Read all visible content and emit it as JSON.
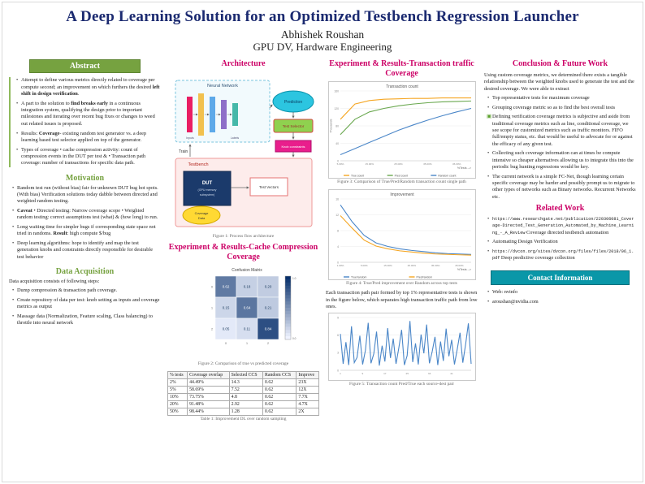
{
  "header": {
    "title": "A Deep Learning Solution for an Optimized Testbench Regression Launcher",
    "author": "Abhishek Roushan",
    "affiliation": "GPU DV, Hardware Engineering"
  },
  "abstract": {
    "header": "Abstract",
    "bullets": [
      {
        "pre": "Attempt to define various metrics directly related to coverage per compute second; an improvement on which furthers the desired ",
        "bold": "left shift in design verification",
        "post": "."
      },
      {
        "pre": "A part to the solution to ",
        "bold": "find breaks early",
        "post": " in a continuous integration system, qualifying the design prior to important milestones and iterating over recent bug fixes or changes to weed out related issues is proposed."
      },
      {
        "pre": "Results: ",
        "bold": "Coverage",
        "post": "- existing random test generator vs. a deep learning based test selector applied on top of the generator."
      },
      {
        "pre": "Types of coverage • cache compression activity: count of compression events in the DUT per test & • Transaction path coverage: number of transactions for specific data path.",
        "bold": "",
        "post": ""
      }
    ]
  },
  "motivation": {
    "header": "Motivation",
    "bullets": [
      {
        "pre": "Random test run (without bias) fair for unknown DUT bug hot spots. (With bias) Verification solutions today dabble between directed and weighted random testing.",
        "bold": "",
        "post": ""
      },
      {
        "pre": "",
        "bold": "Caveat",
        "post": " • Directed testing: Narrow coverage scope • Weighted random testing: correct assumptions test (what) & (how long) to run."
      },
      {
        "pre": "Long waiting time for simpler bugs if corresponding state space not tried in randoms. ",
        "bold": "Result",
        "post": ": high compute $/bug"
      },
      {
        "pre": "Deep learning algorithms: hope to identify and map the test generation knobs and constraints directly responsible for desirable test behavior",
        "bold": "",
        "post": ""
      }
    ]
  },
  "data_acquisition": {
    "header": "Data Acquisition",
    "intro": "Data acquisition consists of following steps:",
    "bullets": [
      "Dump compression & transaction path coverage.",
      "Create repository of data per test: knob setting as inputs and coverage metrics as output",
      "Massage data (Normalization, Feature scaling, Class balancing) to throttle into neural network"
    ]
  },
  "architecture": {
    "header": "Architecture",
    "figure_caption": "Figure 1: Process flow architecture",
    "labels": {
      "neural_network": "Neural Network",
      "inputs": "Inputs",
      "labels": "Labels",
      "prediction": "Prediction",
      "test_selector": "Test Selector",
      "knob_constraints": "Knob constraints",
      "train": "Train",
      "testbench": "Testbench",
      "dut": "DUT",
      "dut_sub1": "(GPU memory",
      "dut_sub2": "subsystem)",
      "test_vectors": "Test Vectors",
      "coverage_1": "Coverage",
      "coverage_2": "Data"
    }
  },
  "cache_results": {
    "header": "Experiment & Results-Cache Compression Coverage",
    "figure_caption": "Figure 2: Comparison of true vs predicted coverage",
    "table_caption": "Table 1: Improvement DL over random sampling",
    "table": {
      "headers": [
        "% tests",
        "Coverage overlap",
        "Selected CCS",
        "Random CCS",
        "Improve"
      ],
      "rows": [
        [
          "2%",
          "44.49%",
          "14.3",
          "0.62",
          "23X"
        ],
        [
          "5%",
          "58.69%",
          "7.52",
          "0.62",
          "12X"
        ],
        [
          "10%",
          "73.75%",
          "4.8",
          "0.62",
          "7.7X"
        ],
        [
          "20%",
          "91.48%",
          "2.92",
          "0.62",
          "4.7X"
        ],
        [
          "50%",
          "98.44%",
          "1.28",
          "0.62",
          "2X"
        ]
      ]
    }
  },
  "transaction_results": {
    "header": "Experiment & Results-Transaction traffic Coverage",
    "fig3_caption": "Figure 3: Comparison of True/Pred/Random transaction count single path",
    "fig4_caption": "Figure 4: True/Pred improvement over Random across top tests",
    "paragraph": "Each transaction path pair formed by top 1% representative tests is shown in the figure below, which separates high transaction traffic path from low ones.",
    "fig5_caption": "Figure 5: Transaction count Pred/True each source-dest pair"
  },
  "conclusion": {
    "header": "Conclusion & Future Work",
    "intro": "Using custom coverage metrics, we determined there exists a tangible relationship between the weighted knobs used to generate the test and the desired coverage. We were able to extract",
    "bullets": [
      "Top representative tests for maximum coverage",
      "Grouping coverage metric so as to find the best overall tests",
      "Defining verification coverage metrics is subjective and aside from traditional coverage metrics such as line, conditional coverage, we see scope for customized metrics such as traffic monitors. FIFO full/empty status, etc. that would be useful to advocate for or against the efficacy of any given test.",
      "Collecting such coverage information can at times be compute intensive so cheaper alternatives allowing us to integrate this into the periodic bug hunting regressions would be key.",
      "The current network is a simple FC-Net, though learning certain specific coverage may be harder and possibly prompt us to migrate to other types of networks such as Binary networks. Recurrent Networks etc."
    ]
  },
  "related": {
    "header": "Related Work",
    "items": [
      {
        "url": "https://www.researchgate.net/publication/220306081_Coverage-Directed_Test_Generation_Automated_by_Machine_Learning_-_A_Review",
        "desc": " Coverage directed testbench automation"
      },
      {
        "url": "",
        "desc": "Automating Design Verification"
      },
      {
        "url": "https://dvcon.org/sites/dvcon.org/files/files/2018/06_1.pdf",
        "desc": " Deep predictive coverage collection"
      }
    ]
  },
  "contact": {
    "header": "Contact Information",
    "items": [
      "Web: nvinfo",
      "aroushan@nvidia.com"
    ]
  },
  "chart_data": [
    {
      "id": "fig3",
      "type": "line",
      "title": "Transaction count",
      "x": [
        "5.00%",
        "10.00%",
        "15.00%",
        "20.00%",
        "25.00%",
        "30.00%",
        "35.00%",
        "40.00%",
        "45.00%",
        "50.00%"
      ],
      "xlabel": "%Tests -->",
      "ylabel": "Thousands",
      "ylim": [
        0,
        160
      ],
      "ydivs": 4,
      "legend": [
        "True count",
        "Pred count",
        "Random count"
      ],
      "series": [
        {
          "name": "True count",
          "color": "#f5a623",
          "values": [
            95,
            130,
            138,
            141,
            142,
            143,
            143,
            144,
            144,
            144
          ]
        },
        {
          "name": "Pred count",
          "color": "#6aa84f",
          "values": [
            60,
            95,
            112,
            120,
            126,
            130,
            133,
            135,
            136,
            137
          ]
        },
        {
          "name": "Random count",
          "color": "#4a86c8",
          "values": [
            14,
            28,
            42,
            56,
            70,
            82,
            93,
            103,
            112,
            120
          ]
        }
      ]
    },
    {
      "id": "fig4",
      "type": "line",
      "title": "Improvement",
      "x": [
        "1.00%",
        "2.00%",
        "5.00%",
        "10.00%",
        "15.00%",
        "20.00%",
        "25.00%",
        "30.00%",
        "35.00%",
        "40.00%",
        "45.00%",
        "50.00%"
      ],
      "xlabel": "%Tests -->",
      "ylim": [
        0,
        16
      ],
      "ydivs": 4,
      "legend": [
        "True/random",
        "Pred/random"
      ],
      "series": [
        {
          "name": "True/random",
          "color": "#4a86c8",
          "values": [
            14.5,
            10.2,
            6.8,
            4.9,
            4.0,
            3.4,
            3.0,
            2.7,
            2.4,
            2.2,
            2.1,
            2.0
          ]
        },
        {
          "name": "Pred/random",
          "color": "#f5a623",
          "values": [
            11.8,
            8.6,
            5.6,
            4.1,
            3.4,
            2.9,
            2.6,
            2.3,
            2.1,
            2.0,
            1.9,
            1.8
          ]
        }
      ]
    },
    {
      "id": "fig5",
      "type": "line",
      "title": "",
      "color": "#4a86c8",
      "ylim": [
        0,
        9
      ],
      "ydivs": 3,
      "values": [
        6.2,
        1.1,
        4.8,
        0.9,
        7.5,
        1.3,
        2.2,
        5.9,
        1.0,
        3.4,
        8.1,
        1.2,
        2.8,
        6.6,
        0.8,
        4.2,
        1.5,
        7.2,
        2.1,
        5.4,
        1.1,
        3.8,
        6.9,
        0.9,
        2.5,
        8.4,
        1.4,
        4.6,
        1.0,
        6.1,
        2.9,
        7.8,
        1.2,
        3.2,
        5.7,
        0.9,
        4.9,
        1.6,
        7.1,
        2.4,
        5.2,
        1.0,
        3.6,
        6.4,
        1.3,
        4.4,
        8.0,
        1.1
      ]
    },
    {
      "id": "fig2",
      "type": "heatmap",
      "title": "Confusion Matrix",
      "x_ticks": [
        "0",
        "1",
        "2"
      ],
      "y_ticks": [
        "0",
        "1",
        "2"
      ],
      "matrix": [
        [
          0.62,
          0.18,
          0.2
        ],
        [
          0.15,
          0.64,
          0.21
        ],
        [
          0.05,
          0.11,
          0.84
        ]
      ]
    }
  ]
}
